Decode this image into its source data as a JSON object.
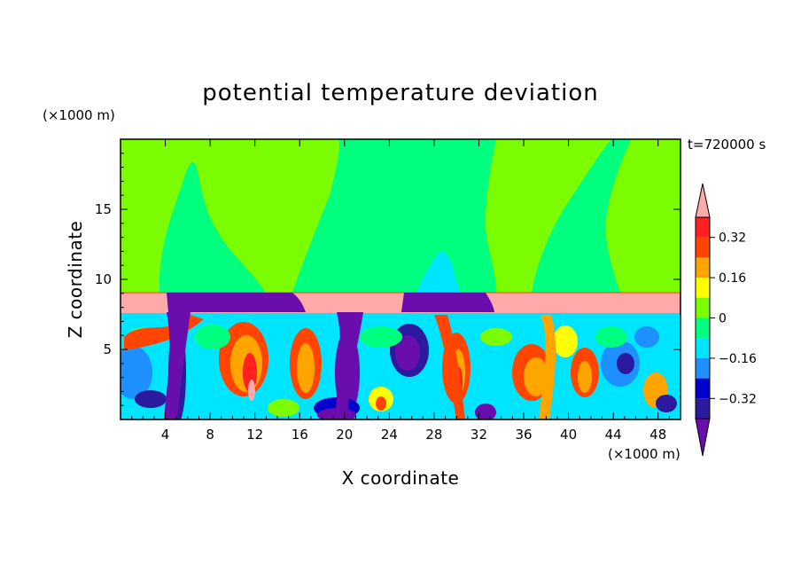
{
  "chart_data": {
    "type": "heatmap",
    "title": "potential temperature deviation",
    "xlabel": "X coordinate",
    "ylabel": "Z coordinate",
    "x_unit": "(×1000 m)",
    "y_unit": "(×1000 m)",
    "time_label": "t=720000 s",
    "xlim": [
      0,
      50
    ],
    "ylim": [
      0,
      20
    ],
    "x_ticks": [
      "4",
      "8",
      "12",
      "16",
      "20",
      "24",
      "28",
      "32",
      "36",
      "40",
      "44",
      "48"
    ],
    "x_tick_values": [
      4,
      8,
      12,
      16,
      20,
      24,
      28,
      32,
      36,
      40,
      44,
      48
    ],
    "y_ticks": [
      "5",
      "10",
      "15"
    ],
    "y_tick_values": [
      5,
      10,
      15
    ],
    "colorbar": {
      "labels": [
        "0.32",
        "0.16",
        "0",
        "−0.16",
        "−0.32"
      ],
      "label_values": [
        0.32,
        0.16,
        0,
        -0.16,
        -0.32
      ],
      "levels": [
        -0.4,
        -0.32,
        -0.24,
        -0.16,
        -0.08,
        0,
        0.08,
        0.16,
        0.24,
        0.32,
        0.4
      ],
      "colors": [
        "#6a0dad",
        "#2b1a9e",
        "#0000cd",
        "#1e90ff",
        "#00e5ff",
        "#00ff7f",
        "#7cfc00",
        "#ffff00",
        "#ffa500",
        "#ff4500",
        "#ff2020",
        "#ffaaaa"
      ],
      "extend": "both"
    },
    "regions": {
      "upper_layer_value": 0.02,
      "band_value": 0.45,
      "band_z": [
        7.8,
        9.0
      ],
      "cold_blocks": [
        {
          "x": [
            3.3,
            16.3
          ],
          "value": -0.45
        },
        {
          "x": [
            25.3,
            33.2
          ],
          "value": -0.45
        }
      ]
    }
  }
}
